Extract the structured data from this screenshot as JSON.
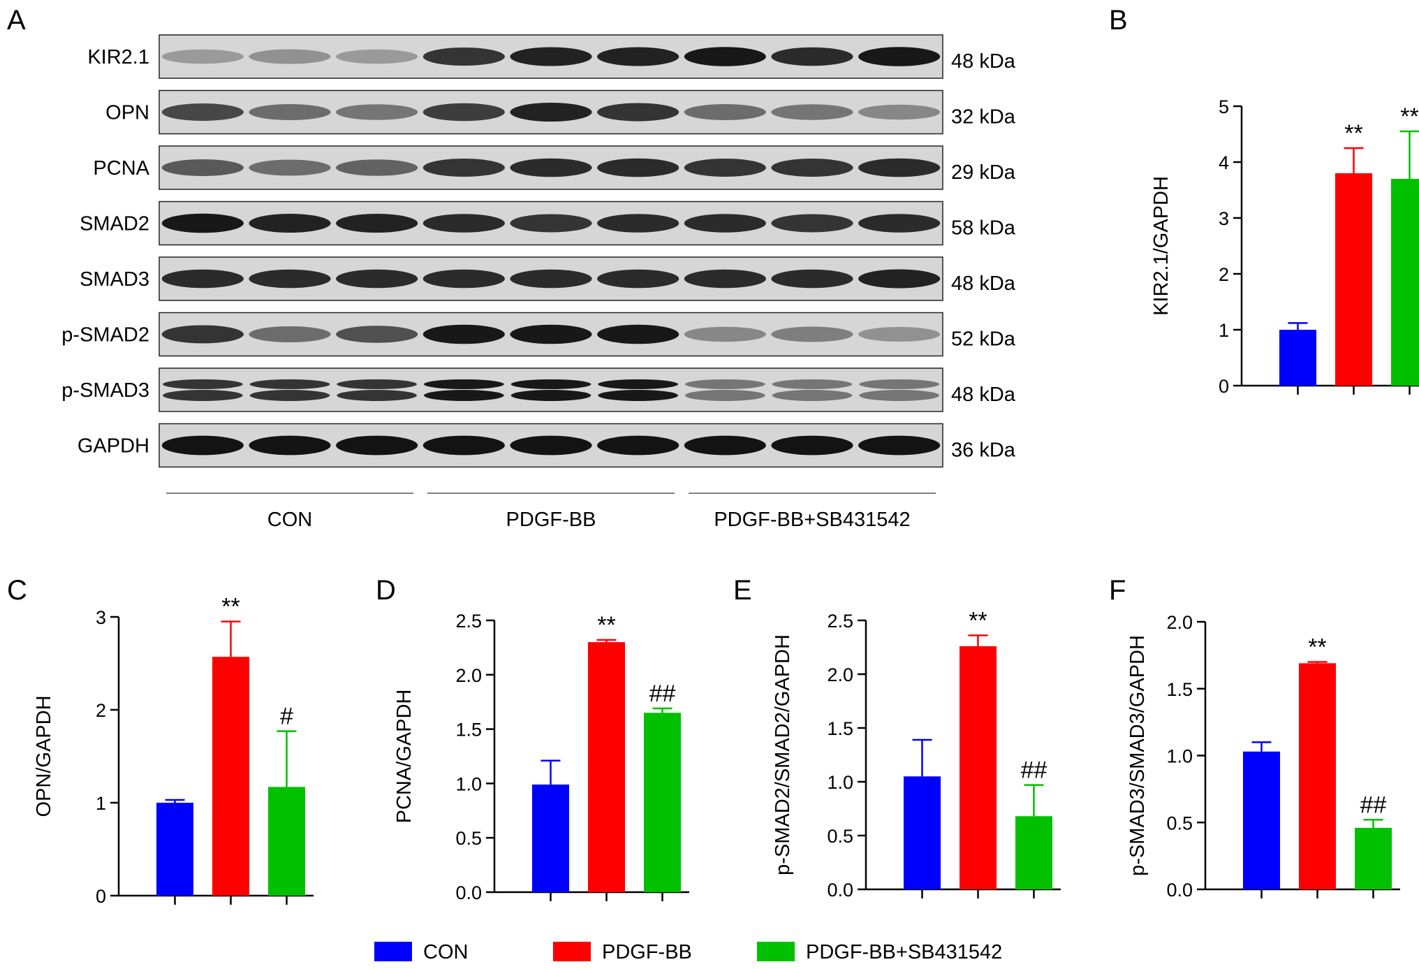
{
  "panel_letters": [
    "A",
    "B",
    "C",
    "D",
    "E",
    "F"
  ],
  "blot": {
    "proteins": [
      {
        "name": "KIR2.1",
        "size": "48 kDa"
      },
      {
        "name": "OPN",
        "size": "32 kDa"
      },
      {
        "name": "PCNA",
        "size": "29 kDa"
      },
      {
        "name": "SMAD2",
        "size": "58 kDa"
      },
      {
        "name": "SMAD3",
        "size": "48 kDa"
      },
      {
        "name": "p-SMAD2",
        "size": "52 kDa"
      },
      {
        "name": "p-SMAD3",
        "size": "48 kDa"
      },
      {
        "name": "GAPDH",
        "size": "36 kDa"
      }
    ],
    "groups": [
      "CON",
      "PDGF-BB",
      "PDGF-BB+SB431542"
    ],
    "lanes_per_group": 3
  },
  "colors": {
    "CON": "#0000ff",
    "PDGF-BB": "#ff0000",
    "PDGF-BB+SB431542": "#00c000"
  },
  "legend": [
    "CON",
    "PDGF-BB",
    "PDGF-BB+SB431542"
  ],
  "chart_data": [
    {
      "panel": "B",
      "type": "bar",
      "title": "",
      "xlabel": "",
      "ylabel": "KIR2.1/GAPDH",
      "categories": [
        "CON",
        "PDGF-BB",
        "PDGF-BB+SB431542"
      ],
      "values": [
        1.0,
        3.8,
        3.7
      ],
      "errors": [
        0.12,
        0.45,
        0.85
      ],
      "annotations": [
        "",
        "**",
        "**"
      ],
      "ylim": [
        0,
        5
      ],
      "yticks": [
        "0",
        "1",
        "2",
        "3",
        "4",
        "5"
      ]
    },
    {
      "panel": "C",
      "type": "bar",
      "title": "",
      "xlabel": "",
      "ylabel": "OPN/GAPDH",
      "categories": [
        "CON",
        "PDGF-BB",
        "PDGF-BB+SB431542"
      ],
      "values": [
        1.0,
        2.57,
        1.17
      ],
      "errors": [
        0.03,
        0.38,
        0.6
      ],
      "annotations": [
        "",
        "**",
        "#"
      ],
      "ylim": [
        0,
        3
      ],
      "yticks": [
        "0",
        "1",
        "2",
        "3"
      ]
    },
    {
      "panel": "D",
      "type": "bar",
      "title": "",
      "xlabel": "",
      "ylabel": "PCNA/GAPDH",
      "categories": [
        "CON",
        "PDGF-BB",
        "PDGF-BB+SB431542"
      ],
      "values": [
        0.99,
        2.3,
        1.65
      ],
      "errors": [
        0.22,
        0.02,
        0.04
      ],
      "annotations": [
        "",
        "**",
        "##"
      ],
      "ylim": [
        0,
        2.5
      ],
      "yticks": [
        "0.0",
        "0.5",
        "1.0",
        "1.5",
        "2.0",
        "2.5"
      ]
    },
    {
      "panel": "E",
      "type": "bar",
      "title": "",
      "xlabel": "",
      "ylabel": "p-SMAD2/SMAD2/GAPDH",
      "categories": [
        "CON",
        "PDGF-BB",
        "PDGF-BB+SB431542"
      ],
      "values": [
        1.05,
        2.26,
        0.68
      ],
      "errors": [
        0.34,
        0.1,
        0.29
      ],
      "annotations": [
        "",
        "**",
        "##"
      ],
      "ylim": [
        0,
        2.5
      ],
      "yticks": [
        "0.0",
        "0.5",
        "1.0",
        "1.5",
        "2.0",
        "2.5"
      ]
    },
    {
      "panel": "F",
      "type": "bar",
      "title": "",
      "xlabel": "",
      "ylabel": "p-SMAD3/SMAD3/GAPDH",
      "categories": [
        "CON",
        "PDGF-BB",
        "PDGF-BB+SB431542"
      ],
      "values": [
        1.03,
        1.69,
        0.46
      ],
      "errors": [
        0.07,
        0.01,
        0.06
      ],
      "annotations": [
        "",
        "**",
        "##"
      ],
      "ylim": [
        0,
        2.0
      ],
      "yticks": [
        "0.0",
        "0.5",
        "1.0",
        "1.5",
        "2.0"
      ]
    }
  ]
}
